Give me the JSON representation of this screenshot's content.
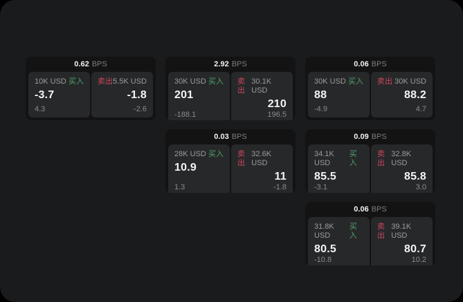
{
  "labels": {
    "bps_unit": "BPS",
    "buy": "买入",
    "sell": "卖出"
  },
  "colors": {
    "page_background": "#000000",
    "surface": "#1a1b1c",
    "card_background": "#131314",
    "panel_background": "#27282a",
    "buy_accent": "#4fa369",
    "sell_accent": "#c9485b",
    "primary_text": "#f4f4f4",
    "muted_text": "#9c9c9c"
  },
  "cards": [
    {
      "bps": "0.62",
      "buy": {
        "amount": "10K USD",
        "price": "-3.7",
        "delta": "4.3"
      },
      "sell": {
        "amount": "5.5K USD",
        "price": "-1.8",
        "delta": "-2.6"
      }
    },
    {
      "bps": "2.92",
      "buy": {
        "amount": "30K USD",
        "price": "201",
        "delta": "-188.1"
      },
      "sell": {
        "amount": "30.1K USD",
        "price": "210",
        "delta": "196.5"
      }
    },
    {
      "bps": "0.06",
      "buy": {
        "amount": "30K USD",
        "price": "88",
        "delta": "-4.9"
      },
      "sell": {
        "amount": "30K USD",
        "price": "88.2",
        "delta": "4.7"
      }
    },
    {
      "bps": "0.03",
      "buy": {
        "amount": "28K USD",
        "price": "10.9",
        "delta": "1.3"
      },
      "sell": {
        "amount": "32.6K USD",
        "price": "11",
        "delta": "-1.8"
      }
    },
    {
      "bps": "0.09",
      "buy": {
        "amount": "34.1K USD",
        "price": "85.5",
        "delta": "-3.1"
      },
      "sell": {
        "amount": "32.8K USD",
        "price": "85.8",
        "delta": "3.0"
      }
    },
    {
      "bps": "0.06",
      "buy": {
        "amount": "31.8K USD",
        "price": "80.5",
        "delta": "-10.8"
      },
      "sell": {
        "amount": "39.1K USD",
        "price": "80.7",
        "delta": "10.2"
      }
    }
  ]
}
